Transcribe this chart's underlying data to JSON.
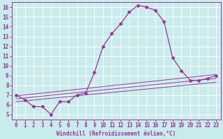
{
  "title": "",
  "xlabel": "Windchill (Refroidissement éolien,°C)",
  "background_color": "#c8ecec",
  "grid_color": "#ffffff",
  "line_color": "#993399",
  "xlim": [
    -0.5,
    23.5
  ],
  "ylim": [
    4.5,
    16.5
  ],
  "xticks": [
    0,
    1,
    2,
    3,
    4,
    5,
    6,
    7,
    8,
    9,
    10,
    11,
    12,
    13,
    14,
    15,
    16,
    17,
    18,
    19,
    20,
    21,
    22,
    23
  ],
  "yticks": [
    5,
    6,
    7,
    8,
    9,
    10,
    11,
    12,
    13,
    14,
    15,
    16
  ],
  "main_x": [
    0,
    1,
    2,
    3,
    4,
    5,
    6,
    7,
    8,
    9,
    10,
    11,
    12,
    13,
    14,
    15,
    16,
    17,
    18,
    19,
    20,
    21,
    22,
    23
  ],
  "main_y": [
    7.0,
    6.5,
    5.8,
    5.8,
    5.0,
    6.3,
    6.3,
    7.0,
    7.2,
    9.3,
    12.0,
    13.3,
    14.3,
    15.5,
    16.2,
    16.0,
    15.7,
    14.5,
    10.8,
    9.5,
    8.5,
    8.5,
    8.7,
    9.0
  ],
  "trend_lines": [
    {
      "x": [
        0,
        23
      ],
      "y": [
        6.9,
        9.1
      ]
    },
    {
      "x": [
        0,
        23
      ],
      "y": [
        6.6,
        8.7
      ]
    },
    {
      "x": [
        0,
        23
      ],
      "y": [
        6.3,
        8.3
      ]
    }
  ],
  "marker": "D",
  "markersize": 2.5,
  "linewidth": 0.9,
  "tick_fontsize": 5.5,
  "xlabel_fontsize": 5.5
}
